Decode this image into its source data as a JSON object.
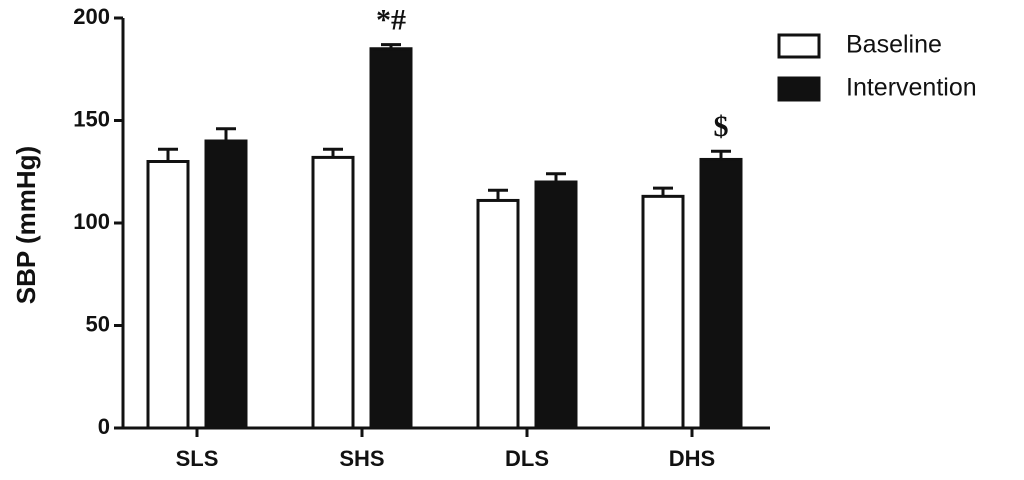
{
  "chart_data": {
    "type": "bar",
    "y_label": "SBP (mmHg)",
    "categories": [
      "SLS",
      "SHS",
      "DLS",
      "DHS"
    ],
    "series": [
      {
        "name": "Baseline",
        "color": "#ffffff",
        "values": [
          130,
          132,
          111,
          113
        ],
        "errors": [
          6,
          4,
          5,
          4
        ]
      },
      {
        "name": "Intervention",
        "color": "#111111",
        "values": [
          140,
          185,
          120,
          131
        ],
        "errors": [
          6,
          2,
          4,
          4
        ]
      }
    ],
    "ylim": [
      0,
      200
    ],
    "yticks": [
      0,
      50,
      100,
      150,
      200
    ],
    "grid": false,
    "legend": "right",
    "annotations": [
      {
        "text": "*#",
        "category": "SHS",
        "series": "Intervention"
      },
      {
        "text": "$",
        "category": "DHS",
        "series": "Intervention"
      }
    ]
  }
}
